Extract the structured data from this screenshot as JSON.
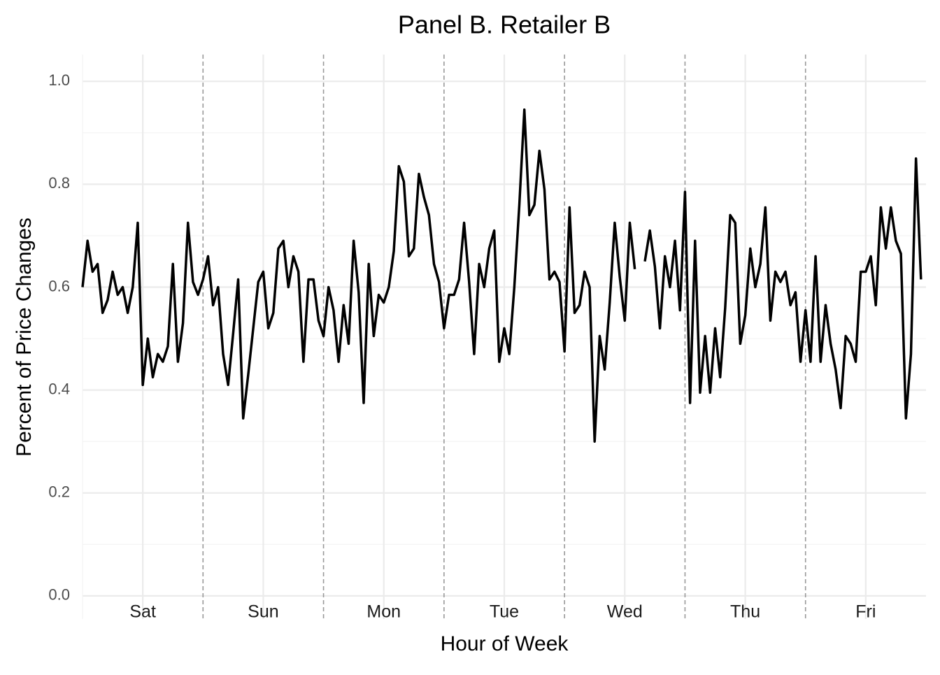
{
  "chart_data": {
    "type": "line",
    "title": "Panel B. Retailer B",
    "xlabel": "Hour of Week",
    "ylabel": "Percent of Price Changes",
    "x": [
      0,
      1,
      2,
      3,
      4,
      5,
      6,
      7,
      8,
      9,
      10,
      11,
      12,
      13,
      14,
      15,
      16,
      17,
      18,
      19,
      20,
      21,
      22,
      23,
      24,
      25,
      26,
      27,
      28,
      29,
      30,
      31,
      32,
      33,
      34,
      35,
      36,
      37,
      38,
      39,
      40,
      41,
      42,
      43,
      44,
      45,
      46,
      47,
      48,
      49,
      50,
      51,
      52,
      53,
      54,
      55,
      56,
      57,
      58,
      59,
      60,
      61,
      62,
      63,
      64,
      65,
      66,
      67,
      68,
      69,
      70,
      71,
      72,
      73,
      74,
      75,
      76,
      77,
      78,
      79,
      80,
      81,
      82,
      83,
      84,
      85,
      86,
      87,
      88,
      89,
      90,
      91,
      92,
      93,
      94,
      95,
      96,
      97,
      98,
      99,
      100,
      101,
      102,
      103,
      104,
      105,
      106,
      107,
      108,
      109,
      110,
      111,
      112,
      113,
      114,
      115,
      116,
      117,
      118,
      119,
      120,
      121,
      122,
      123,
      124,
      125,
      126,
      127,
      128,
      129,
      130,
      131,
      132,
      133,
      134,
      135,
      136,
      137,
      138,
      139,
      140,
      141,
      142,
      143,
      144,
      145,
      146,
      147,
      148,
      149,
      150,
      151,
      152,
      153,
      154,
      155,
      156,
      157,
      158,
      159,
      160,
      161,
      162,
      163,
      164,
      165,
      166,
      167
    ],
    "series": [
      {
        "color": "#000000",
        "values": [
          0.6,
          0.69,
          0.63,
          0.645,
          0.55,
          0.575,
          0.63,
          0.585,
          0.6,
          0.55,
          0.6,
          0.725,
          0.41,
          0.5,
          0.425,
          0.47,
          0.455,
          0.485,
          0.645,
          0.455,
          0.53,
          0.725,
          0.61,
          0.585,
          0.615,
          0.66,
          0.565,
          0.6,
          0.47,
          0.41,
          0.51,
          0.615,
          0.345,
          0.43,
          0.52,
          0.61,
          0.63,
          0.52,
          0.55,
          0.675,
          0.69,
          0.6,
          0.66,
          0.63,
          0.455,
          0.615,
          0.615,
          0.535,
          0.505,
          0.6,
          0.555,
          0.455,
          0.565,
          0.49,
          0.69,
          0.59,
          0.375,
          0.645,
          0.505,
          0.585,
          0.57,
          0.6,
          0.67,
          0.835,
          0.805,
          0.66,
          0.675,
          0.82,
          0.775,
          0.74,
          0.645,
          0.61,
          0.52,
          0.585,
          0.585,
          0.615,
          0.725,
          0.61,
          0.47,
          0.645,
          0.6,
          0.675,
          0.71,
          0.455,
          0.52,
          0.47,
          0.6,
          0.76,
          0.945,
          0.74,
          0.76,
          0.865,
          0.79,
          0.615,
          0.63,
          0.61,
          0.475,
          0.755,
          0.55,
          0.565,
          0.63,
          0.6,
          0.3,
          0.505,
          0.44,
          0.57,
          0.725,
          0.62,
          0.535,
          0.725,
          0.635,
          null,
          0.65,
          0.71,
          0.64,
          0.52,
          0.66,
          0.6,
          0.69,
          0.555,
          0.785,
          0.375,
          0.69,
          0.395,
          0.505,
          0.395,
          0.52,
          0.425,
          0.56,
          0.74,
          0.725,
          0.49,
          0.545,
          0.675,
          0.6,
          0.645,
          0.755,
          0.535,
          0.63,
          0.61,
          0.63,
          0.565,
          0.59,
          0.455,
          0.555,
          0.455,
          0.66,
          0.455,
          0.565,
          0.49,
          0.44,
          0.365,
          0.505,
          0.49,
          0.455,
          0.63,
          0.63,
          0.66,
          0.565,
          0.755,
          0.675,
          0.755,
          0.69,
          0.665,
          0.345,
          0.47,
          0.85,
          0.615
        ]
      }
    ],
    "xlim": [
      0,
      168
    ],
    "xticks": [
      {
        "value": 12,
        "label": "Sat"
      },
      {
        "value": 36,
        "label": "Sun"
      },
      {
        "value": 60,
        "label": "Mon"
      },
      {
        "value": 84,
        "label": "Tue"
      },
      {
        "value": 108,
        "label": "Wed"
      },
      {
        "value": 132,
        "label": "Thu"
      },
      {
        "value": 156,
        "label": "Fri"
      }
    ],
    "vlines": [
      24,
      48,
      72,
      96,
      120,
      144
    ],
    "ylim": [
      -0.045,
      1.052
    ],
    "yticks": [
      {
        "value": 0,
        "label": "0.0"
      },
      0.2,
      0.4,
      0.6,
      0.8,
      {
        "value": 1,
        "label": "1.0"
      }
    ],
    "grid": true
  }
}
